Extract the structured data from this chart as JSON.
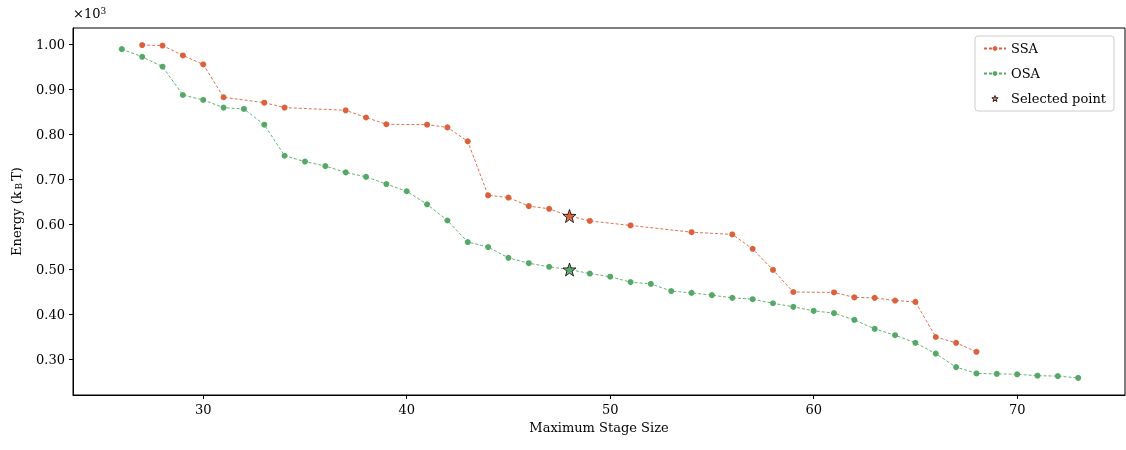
{
  "chart_data": {
    "type": "line",
    "xlabel": "Maximum Stage Size",
    "ylabel": "Energy (k$_{B}$T)",
    "annotations": [
      "×10$^{3}$"
    ],
    "xlim": [
      23.6,
      75.3
    ],
    "xticks": [
      30,
      40,
      50,
      60,
      70
    ],
    "ylim": [
      0.22,
      1.036
    ],
    "yticks": [
      {
        "value": 0.3,
        "label": "0.30"
      },
      {
        "value": 0.4,
        "label": "0.40"
      },
      {
        "value": 0.5,
        "label": "0.50"
      },
      {
        "value": 0.6,
        "label": "0.60"
      },
      {
        "value": 0.7,
        "label": "0.70"
      },
      {
        "value": 0.8,
        "label": "0.80"
      },
      {
        "value": 0.9,
        "label": "0.90"
      },
      {
        "value": 1.0,
        "label": "1.00"
      }
    ],
    "grid": false,
    "legend": "top right",
    "line_style": "dashed",
    "series": [
      {
        "name": "SSA",
        "color": "#dd603c",
        "marker": "circle",
        "x": [
          27,
          28,
          29,
          30,
          31,
          33,
          34,
          37,
          38,
          39,
          41,
          42,
          43,
          44,
          45,
          46,
          47,
          48,
          49,
          51,
          54,
          56,
          57,
          58,
          59,
          61,
          62,
          63,
          64,
          65,
          66,
          67,
          68
        ],
        "values": [
          0.998,
          0.997,
          0.975,
          0.955,
          0.882,
          0.87,
          0.859,
          0.853,
          0.837,
          0.822,
          0.821,
          0.815,
          0.784,
          0.664,
          0.659,
          0.64,
          0.634,
          0.618,
          0.607,
          0.597,
          0.582,
          0.577,
          0.545,
          0.498,
          0.449,
          0.448,
          0.437,
          0.436,
          0.43,
          0.427,
          0.349,
          0.336,
          0.316
        ]
      },
      {
        "name": "OSA",
        "color": "#55a868",
        "marker": "circle",
        "x": [
          26,
          27,
          28,
          29,
          30,
          31,
          32,
          33,
          34,
          35,
          36,
          37,
          38,
          39,
          40,
          41,
          42,
          43,
          44,
          45,
          46,
          47,
          48,
          49,
          50,
          51,
          52,
          53,
          54,
          55,
          56,
          57,
          58,
          59,
          60,
          61,
          62,
          63,
          64,
          65,
          66,
          67,
          68,
          69,
          70,
          71,
          72,
          73
        ],
        "values": [
          0.989,
          0.972,
          0.95,
          0.887,
          0.876,
          0.859,
          0.856,
          0.821,
          0.752,
          0.739,
          0.729,
          0.715,
          0.705,
          0.689,
          0.673,
          0.644,
          0.608,
          0.56,
          0.549,
          0.525,
          0.513,
          0.505,
          0.499,
          0.49,
          0.483,
          0.471,
          0.467,
          0.451,
          0.447,
          0.442,
          0.436,
          0.433,
          0.424,
          0.416,
          0.407,
          0.402,
          0.387,
          0.367,
          0.353,
          0.336,
          0.312,
          0.282,
          0.268,
          0.267,
          0.266,
          0.263,
          0.262,
          0.258
        ]
      },
      {
        "name": "Selected point",
        "type": "scatter",
        "marker": "star",
        "x": [
          48,
          48
        ],
        "values": [
          0.618,
          0.499
        ],
        "colors": [
          "#dd603c",
          "#55a868"
        ]
      }
    ]
  }
}
